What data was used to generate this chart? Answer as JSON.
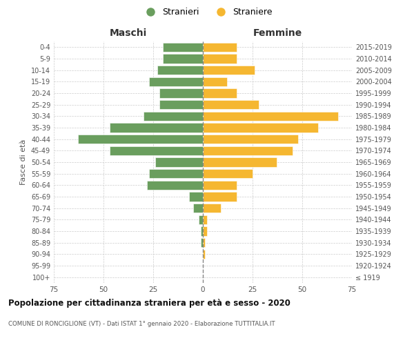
{
  "age_groups": [
    "100+",
    "95-99",
    "90-94",
    "85-89",
    "80-84",
    "75-79",
    "70-74",
    "65-69",
    "60-64",
    "55-59",
    "50-54",
    "45-49",
    "40-44",
    "35-39",
    "30-34",
    "25-29",
    "20-24",
    "15-19",
    "10-14",
    "5-9",
    "0-4"
  ],
  "birth_years": [
    "≤ 1919",
    "1920-1924",
    "1925-1929",
    "1930-1934",
    "1935-1939",
    "1940-1944",
    "1945-1949",
    "1950-1954",
    "1955-1959",
    "1960-1964",
    "1965-1969",
    "1970-1974",
    "1975-1979",
    "1980-1984",
    "1985-1989",
    "1990-1994",
    "1995-1999",
    "2000-2004",
    "2005-2009",
    "2010-2014",
    "2015-2019"
  ],
  "males": [
    0,
    0,
    0,
    1,
    1,
    2,
    5,
    7,
    28,
    27,
    24,
    47,
    63,
    47,
    30,
    22,
    22,
    27,
    23,
    20,
    20
  ],
  "females": [
    0,
    0,
    1,
    1,
    2,
    2,
    9,
    17,
    17,
    25,
    37,
    45,
    48,
    58,
    68,
    28,
    17,
    12,
    26,
    17,
    17
  ],
  "male_color": "#6a9e5e",
  "female_color": "#f5b731",
  "male_label": "Stranieri",
  "female_label": "Straniere",
  "xlim": 75,
  "title": "Popolazione per cittadinanza straniera per età e sesso - 2020",
  "subtitle": "COMUNE DI RONCIGLIONE (VT) - Dati ISTAT 1° gennaio 2020 - Elaborazione TUTTITALIA.IT",
  "left_header": "Maschi",
  "right_header": "Femmine",
  "ylabel_left": "Fasce di età",
  "bg_color": "#ffffff",
  "grid_color": "#cccccc"
}
